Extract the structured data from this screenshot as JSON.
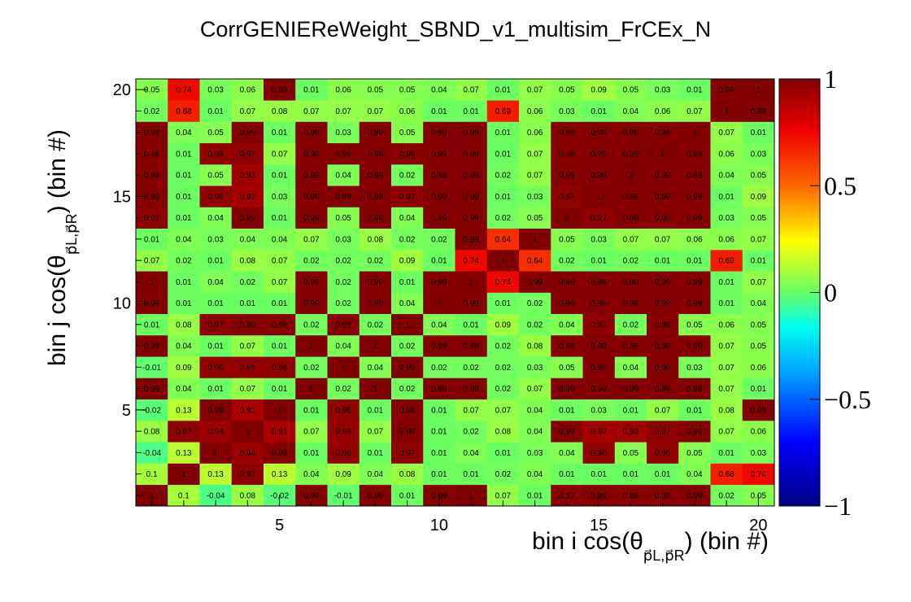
{
  "chart_data": {
    "type": "heatmap",
    "title": "CorrGENIEReWeight_SBND_v1_multisim_FrCEx_N",
    "xlabel": {
      "main": "bin i cos(θ",
      "sub": "p⃗L,p⃗R",
      "tail": ") (bin #)"
    },
    "ylabel": {
      "main": "bin j cos(θ",
      "sub": "p⃗L,p⃗R",
      "tail": ") (bin #)"
    },
    "x_range": [
      0.5,
      20.5
    ],
    "y_range": [
      0.5,
      20.5
    ],
    "x_ticks": [
      5,
      10,
      15,
      20
    ],
    "y_ticks": [
      5,
      10,
      15,
      20
    ],
    "z_range": [
      -1,
      1
    ],
    "z_ticks": [
      "1",
      "0.5",
      "0",
      "−0.5",
      "−1"
    ],
    "z_tick_values": [
      1,
      0.5,
      0,
      -0.5,
      -1
    ],
    "colormap": "rainbow",
    "n_bins": 20,
    "cell_label_note": "overlapping numeric text in each cell",
    "values": [
      [
        1,
        0.1,
        -0.04,
        0.08,
        -0.02,
        0.99,
        -0.01,
        0.99,
        0.01,
        0.99,
        1.0,
        0.07,
        0.01,
        0.97,
        0.99,
        0.98,
        0.98,
        0.99,
        0.02,
        0.05
      ],
      [
        0.1,
        1,
        0.13,
        0.97,
        0.13,
        0.04,
        0.09,
        0.04,
        0.08,
        0.01,
        0.01,
        0.02,
        0.04,
        0.01,
        0.01,
        0.01,
        0.01,
        0.04,
        0.68,
        0.74
      ],
      [
        -0.04,
        0.13,
        1,
        0.94,
        0.99,
        0.01,
        0.96,
        0.01,
        0.97,
        0.01,
        0.04,
        0.01,
        0.03,
        0.04,
        0.96,
        0.05,
        0.96,
        0.05,
        0.01,
        0.03
      ],
      [
        0.08,
        0.97,
        0.94,
        1,
        0.91,
        0.07,
        0.95,
        0.07,
        0.99,
        0.01,
        0.02,
        0.08,
        0.04,
        0.99,
        0.92,
        0.93,
        0.97,
        0.99,
        0.07,
        0.06
      ],
      [
        -0.02,
        0.13,
        0.99,
        0.91,
        1,
        0.01,
        0.96,
        0.01,
        0.98,
        0.01,
        0.07,
        0.07,
        0.04,
        0.01,
        0.03,
        0.01,
        0.07,
        0.01,
        0.08,
        0.99
      ],
      [
        0.99,
        0.04,
        0.01,
        0.07,
        0.01,
        1,
        0.02,
        1.0,
        0.02,
        0.99,
        0.99,
        0.02,
        0.07,
        0.99,
        0.99,
        0.99,
        0.99,
        0.99,
        0.07,
        0.01
      ],
      [
        -0.01,
        0.09,
        0.96,
        0.95,
        0.96,
        0.02,
        1,
        0.04,
        0.99,
        0.02,
        0.02,
        0.02,
        0.03,
        0.05,
        0.99,
        0.04,
        0.99,
        0.03,
        0.07,
        0.06
      ],
      [
        0.99,
        0.04,
        0.01,
        0.07,
        0.01,
        1.0,
        0.04,
        1,
        0.02,
        0.99,
        0.99,
        0.02,
        0.08,
        0.99,
        0.99,
        0.99,
        0.99,
        0.99,
        0.07,
        0.05
      ],
      [
        0.01,
        0.08,
        0.97,
        0.99,
        0.98,
        0.02,
        0.99,
        0.02,
        1,
        0.04,
        0.01,
        0.09,
        0.02,
        0.04,
        0.97,
        0.02,
        0.98,
        0.05,
        0.06,
        0.05
      ],
      [
        0.99,
        0.01,
        0.01,
        0.01,
        0.01,
        0.99,
        0.02,
        0.99,
        0.04,
        1,
        0.99,
        0.01,
        0.02,
        0.99,
        0.99,
        0.99,
        0.99,
        0.99,
        0.01,
        0.04
      ],
      [
        1.0,
        0.01,
        0.04,
        0.02,
        0.07,
        0.99,
        0.02,
        0.99,
        0.01,
        0.99,
        1,
        0.74,
        0.99,
        0.99,
        0.99,
        0.99,
        0.99,
        0.99,
        0.01,
        0.07
      ],
      [
        0.07,
        0.02,
        0.01,
        0.08,
        0.07,
        0.02,
        0.02,
        0.02,
        0.09,
        0.01,
        0.74,
        1,
        0.64,
        0.02,
        0.01,
        0.02,
        0.01,
        0.01,
        0.69,
        0.01
      ],
      [
        0.01,
        0.04,
        0.03,
        0.04,
        0.04,
        0.07,
        0.03,
        0.08,
        0.02,
        0.02,
        0.99,
        0.64,
        1,
        0.05,
        0.03,
        0.07,
        0.07,
        0.06,
        0.06,
        0.07
      ],
      [
        0.97,
        0.01,
        0.04,
        0.99,
        0.01,
        0.99,
        0.05,
        0.99,
        0.04,
        0.99,
        0.99,
        0.02,
        0.05,
        1,
        0.97,
        0.99,
        0.98,
        0.99,
        0.03,
        0.05
      ],
      [
        0.99,
        0.01,
        0.96,
        0.92,
        0.03,
        0.99,
        0.99,
        0.99,
        0.97,
        0.99,
        0.99,
        0.01,
        0.03,
        0.97,
        1,
        0.99,
        0.99,
        0.99,
        0.01,
        0.09
      ],
      [
        0.98,
        0.01,
        0.05,
        0.93,
        0.01,
        0.99,
        0.04,
        0.99,
        0.02,
        0.99,
        0.99,
        0.02,
        0.07,
        0.99,
        0.99,
        1,
        0.99,
        0.99,
        0.04,
        0.05
      ],
      [
        0.98,
        0.01,
        0.96,
        0.97,
        0.07,
        0.99,
        0.99,
        0.99,
        0.98,
        0.99,
        0.99,
        0.01,
        0.07,
        0.98,
        0.99,
        0.99,
        1,
        0.99,
        0.06,
        0.03
      ],
      [
        0.99,
        0.04,
        0.05,
        0.99,
        0.01,
        0.99,
        0.03,
        0.99,
        0.05,
        0.99,
        0.99,
        0.01,
        0.06,
        0.99,
        0.99,
        0.99,
        0.99,
        1,
        0.07,
        0.01
      ],
      [
        0.02,
        0.68,
        0.01,
        0.07,
        0.08,
        0.07,
        0.07,
        0.07,
        0.06,
        0.01,
        0.01,
        0.69,
        0.06,
        0.03,
        0.01,
        0.04,
        0.06,
        0.07,
        1,
        0.99
      ],
      [
        0.05,
        0.74,
        0.03,
        0.06,
        0.99,
        0.01,
        0.06,
        0.05,
        0.05,
        0.04,
        0.07,
        0.01,
        0.07,
        0.05,
        0.09,
        0.05,
        0.03,
        0.01,
        0.99,
        1
      ]
    ]
  }
}
